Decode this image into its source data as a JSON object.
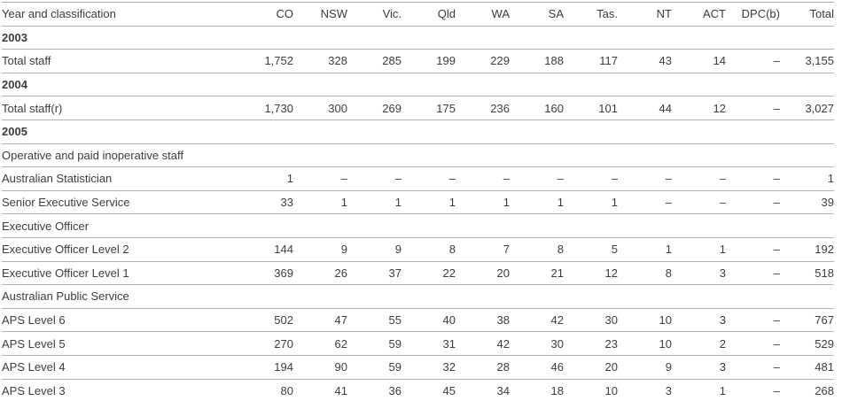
{
  "colors": {
    "text": "#3d3d3d",
    "border": "#b3b3b3",
    "background": "#ffffff"
  },
  "table": {
    "columns": [
      {
        "key": "year-and-classification",
        "label": "Year and classification"
      },
      {
        "key": "co",
        "label": "CO"
      },
      {
        "key": "nsw",
        "label": "NSW"
      },
      {
        "key": "vic",
        "label": "Vic."
      },
      {
        "key": "qld",
        "label": "Qld"
      },
      {
        "key": "wa",
        "label": "WA"
      },
      {
        "key": "sa",
        "label": "SA"
      },
      {
        "key": "tas",
        "label": "Tas."
      },
      {
        "key": "nt",
        "label": "NT"
      },
      {
        "key": "act",
        "label": "ACT"
      },
      {
        "key": "dpc",
        "label": "DPC(b)"
      },
      {
        "key": "total",
        "label": "Total"
      }
    ],
    "rows": [
      {
        "label": "2003",
        "type": "year",
        "indent": 0,
        "values": []
      },
      {
        "label": "Total staff",
        "type": "data",
        "indent": 0,
        "values": [
          "1,752",
          "328",
          "285",
          "199",
          "229",
          "188",
          "117",
          "43",
          "14",
          "–",
          "3,155"
        ]
      },
      {
        "label": "2004",
        "type": "year",
        "indent": 0,
        "values": []
      },
      {
        "label": "Total staff(r)",
        "type": "data",
        "indent": 0,
        "values": [
          "1,730",
          "300",
          "269",
          "175",
          "236",
          "160",
          "101",
          "44",
          "12",
          "–",
          "3,027"
        ]
      },
      {
        "label": "2005",
        "type": "year",
        "indent": 0,
        "values": []
      },
      {
        "label": "Operative and paid inoperative staff",
        "type": "section",
        "indent": 0,
        "values": []
      },
      {
        "label": "Australian Statistician",
        "type": "data",
        "indent": 1,
        "values": [
          "1",
          "–",
          "–",
          "–",
          "–",
          "–",
          "–",
          "–",
          "–",
          "–",
          "1"
        ]
      },
      {
        "label": "Senior Executive Service",
        "type": "data",
        "indent": 1,
        "values": [
          "33",
          "1",
          "1",
          "1",
          "1",
          "1",
          "1",
          "–",
          "–",
          "–",
          "39"
        ]
      },
      {
        "label": "Executive Officer",
        "type": "section",
        "indent": 1,
        "values": []
      },
      {
        "label": "Executive Officer Level 2",
        "type": "data",
        "indent": 2,
        "values": [
          "144",
          "9",
          "9",
          "8",
          "7",
          "8",
          "5",
          "1",
          "1",
          "–",
          "192"
        ]
      },
      {
        "label": "Executive Officer Level 1",
        "type": "data",
        "indent": 2,
        "values": [
          "369",
          "26",
          "37",
          "22",
          "20",
          "21",
          "12",
          "8",
          "3",
          "–",
          "518"
        ]
      },
      {
        "label": "Australian Public Service",
        "type": "section",
        "indent": 1,
        "values": []
      },
      {
        "label": "APS Level 6",
        "type": "data",
        "indent": 2,
        "values": [
          "502",
          "47",
          "55",
          "40",
          "38",
          "42",
          "30",
          "10",
          "3",
          "–",
          "767"
        ]
      },
      {
        "label": "APS Level 5",
        "type": "data",
        "indent": 2,
        "values": [
          "270",
          "62",
          "59",
          "31",
          "42",
          "30",
          "23",
          "10",
          "2",
          "–",
          "529"
        ]
      },
      {
        "label": "APS Level 4",
        "type": "data",
        "indent": 2,
        "values": [
          "194",
          "90",
          "59",
          "32",
          "28",
          "46",
          "20",
          "9",
          "3",
          "–",
          "481"
        ]
      },
      {
        "label": "APS Level 3",
        "type": "data",
        "indent": 2,
        "values": [
          "80",
          "41",
          "36",
          "45",
          "34",
          "18",
          "10",
          "3",
          "1",
          "–",
          "268"
        ]
      }
    ]
  }
}
